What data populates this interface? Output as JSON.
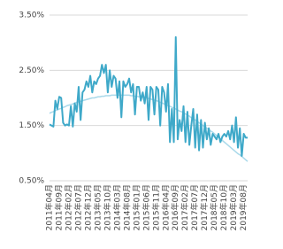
{
  "chart_data": {
    "type": "line",
    "categories": [
      "2011年04月",
      null,
      null,
      null,
      null,
      "2011年09月",
      null,
      null,
      null,
      null,
      "2012年02月",
      null,
      null,
      null,
      null,
      "2012年07月",
      null,
      null,
      null,
      null,
      "2012年12月",
      null,
      null,
      null,
      null,
      "2013年05月",
      null,
      null,
      null,
      null,
      "2013年10月",
      null,
      null,
      null,
      null,
      "2014年03月",
      null,
      null,
      null,
      null,
      "2014年08月",
      null,
      null,
      null,
      null,
      "2015年01月",
      null,
      null,
      null,
      null,
      "2015年06月",
      null,
      null,
      null,
      null,
      "2015年11月",
      null,
      null,
      null,
      null,
      "2016年04月",
      null,
      null,
      null,
      null,
      "2016年09月",
      null,
      null,
      null,
      null,
      "2017年02月",
      null,
      null,
      null,
      null,
      "2017年07月",
      null,
      null,
      null,
      null,
      "2017年12月",
      null,
      null,
      null,
      null,
      "2018年05月",
      null,
      null,
      null,
      null,
      "2018年10月",
      null,
      null,
      null,
      null,
      "2019年03月",
      null,
      null,
      null,
      null,
      "2019年08月",
      null,
      null
    ],
    "series": [
      {
        "color": "#3fa9c9",
        "values": [
          1.52,
          1.5,
          1.48,
          1.95,
          1.8,
          2.02,
          2.0,
          1.55,
          1.5,
          1.52,
          1.5,
          1.85,
          1.48,
          1.9,
          1.75,
          2.2,
          1.6,
          2.1,
          2.15,
          2.3,
          2.2,
          2.4,
          2.1,
          2.3,
          2.25,
          2.35,
          2.4,
          2.6,
          2.45,
          2.6,
          2.1,
          2.5,
          2.2,
          2.4,
          2.35,
          2.0,
          2.3,
          1.65,
          2.3,
          2.2,
          2.25,
          2.35,
          2.1,
          2.25,
          1.7,
          2.2,
          2.2,
          1.95,
          2.1,
          1.9,
          2.2,
          1.6,
          2.2,
          2.15,
          1.7,
          2.2,
          2.15,
          1.5,
          2.2,
          2.1,
          1.75,
          2.25,
          1.2,
          1.8,
          1.2,
          3.1,
          1.25,
          1.6,
          1.4,
          1.85,
          1.2,
          1.75,
          1.15,
          1.5,
          1.8,
          1.1,
          1.7,
          1.05,
          1.6,
          1.1,
          1.55,
          1.25,
          1.45,
          1.15,
          1.35,
          1.3,
          1.25,
          1.35,
          1.2,
          1.3,
          1.35,
          1.3,
          1.4,
          1.25,
          1.5,
          1.2,
          1.65,
          1.1,
          1.45,
          0.95,
          1.35,
          1.28,
          1.28
        ]
      },
      {
        "color": "#a9d9ea",
        "values": [
          1.72,
          1.74,
          1.75,
          1.77,
          1.78,
          1.8,
          1.81,
          1.83,
          1.84,
          1.86,
          1.87,
          1.88,
          1.89,
          1.91,
          1.92,
          1.93,
          1.94,
          1.95,
          1.96,
          1.97,
          1.98,
          1.99,
          2.0,
          2.0,
          2.01,
          2.02,
          2.02,
          2.03,
          2.03,
          2.04,
          2.04,
          2.04,
          2.05,
          2.05,
          2.05,
          2.05,
          2.05,
          2.05,
          2.05,
          2.05,
          2.05,
          2.05,
          2.04,
          2.04,
          2.03,
          2.03,
          2.02,
          2.02,
          2.01,
          2.01,
          2.0,
          1.99,
          1.98,
          1.97,
          1.96,
          1.95,
          1.94,
          1.92,
          1.91,
          1.89,
          1.88,
          1.86,
          1.85,
          1.83,
          1.82,
          1.8,
          1.78,
          1.76,
          1.75,
          1.73,
          1.71,
          1.69,
          1.67,
          1.64,
          1.62,
          1.6,
          1.58,
          1.55,
          1.53,
          1.5,
          1.48,
          1.45,
          1.43,
          1.4,
          1.38,
          1.35,
          1.32,
          1.29,
          1.26,
          1.23,
          1.2,
          1.17,
          1.14,
          1.11,
          1.08,
          1.05,
          1.02,
          0.99,
          0.97,
          0.94,
          0.91,
          0.88,
          0.85
        ]
      }
    ],
    "ylim": [
      0.5,
      3.5
    ],
    "yticks": [
      {
        "value": 0.5,
        "label": "0.50%"
      },
      {
        "value": 1.5,
        "label": "1.50%"
      },
      {
        "value": 2.5,
        "label": "2.50%"
      },
      {
        "value": 3.5,
        "label": "3.50%"
      }
    ],
    "grid": true
  }
}
